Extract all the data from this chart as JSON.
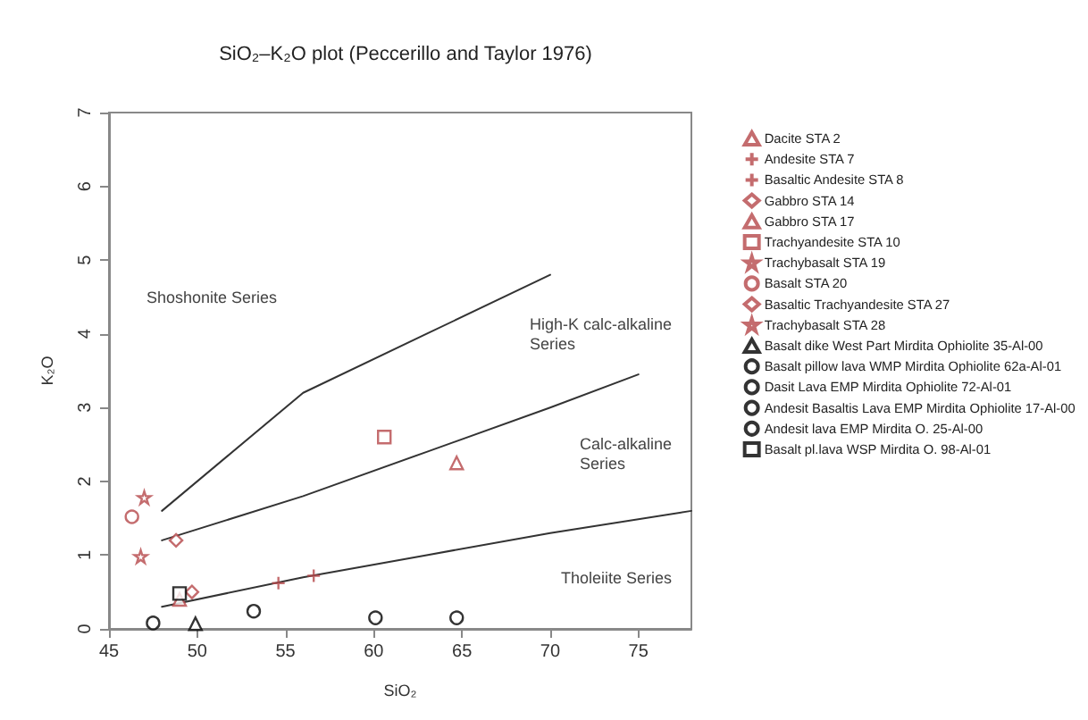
{
  "chart_data": {
    "type": "scatter",
    "title": "SiO₂–K₂O plot (Peccerillo and Taylor 1976)",
    "xlabel": "SiO₂",
    "ylabel": "K₂O",
    "xlim": [
      45,
      78
    ],
    "xticks": [
      45,
      50,
      55,
      60,
      65,
      70,
      75
    ],
    "ylim": [
      0,
      7
    ],
    "yticks": [
      0,
      1,
      2,
      3,
      4,
      5,
      6,
      7
    ],
    "grid": false,
    "legend": "right",
    "annotations": [
      "Shoshonite Series",
      "High-K calc-alkaline\nSeries",
      "Calc-alkaline\nSeries",
      "Tholeiite Series"
    ],
    "series": [
      {
        "type": "line",
        "color": "#333333",
        "marker": "none",
        "x": [
          48,
          56,
          63,
          70,
          78
        ],
        "values": [
          0.3,
          0.7,
          1.0,
          1.3,
          1.6
        ]
      },
      {
        "type": "line",
        "color": "#333333",
        "marker": "none",
        "x": [
          48,
          56,
          63,
          70,
          75
        ],
        "values": [
          1.2,
          1.8,
          2.4,
          3.0,
          3.45
        ]
      },
      {
        "type": "line",
        "color": "#333333",
        "marker": "none",
        "x": [
          48,
          56,
          63,
          70
        ],
        "values": [
          1.6,
          3.2,
          4.0,
          4.8
        ]
      },
      {
        "name": "Dacite STA 2",
        "color": "#b5474a",
        "marker": "triangle",
        "x": [
          64.7
        ],
        "values": [
          2.25
        ]
      },
      {
        "name": "Andesite STA 7",
        "color": "#b5474a",
        "marker": "cross",
        "x": [
          56.6
        ],
        "values": [
          0.72
        ]
      },
      {
        "name": "Basaltic Andesite STA 8",
        "color": "#b5474a",
        "marker": "cross",
        "x": [
          54.6
        ],
        "values": [
          0.62
        ]
      },
      {
        "name": "Gabbro STA 14",
        "color": "#b5474a",
        "marker": "diamond",
        "x": [
          49.7
        ],
        "values": [
          0.5
        ]
      },
      {
        "name": "Gabbro STA 17",
        "color": "#b5474a",
        "marker": "triangle",
        "x": [
          49.0
        ],
        "values": [
          0.4
        ]
      },
      {
        "name": "Trachyandesite STA 10",
        "color": "#b5474a",
        "marker": "square",
        "x": [
          60.6
        ],
        "values": [
          2.6
        ]
      },
      {
        "name": "Trachybasalt STA 19",
        "color": "#b5474a",
        "marker": "star",
        "x": [
          46.8
        ],
        "values": [
          0.98
        ]
      },
      {
        "name": "Basalt STA 20",
        "color": "#b5474a",
        "marker": "circle",
        "x": [
          46.3
        ],
        "values": [
          1.52
        ]
      },
      {
        "name": "Basaltic Trachyandesite STA 27",
        "color": "#b5474a",
        "marker": "diamond",
        "x": [
          48.8
        ],
        "values": [
          1.2
        ]
      },
      {
        "name": "Trachybasalt STA 28",
        "color": "#b5474a",
        "marker": "star",
        "x": [
          47.0
        ],
        "values": [
          1.78
        ]
      },
      {
        "name": "Basalt dike West Part Mirdita Ophiolite 35-Al-00",
        "color": "#000000",
        "marker": "triangle",
        "x": [
          49.9
        ],
        "values": [
          0.07
        ]
      },
      {
        "name": "Basalt pillow lava WMP Mirdita Ophiolite 62a-Al-01",
        "color": "#000000",
        "marker": "circle",
        "x": [
          47.5
        ],
        "values": [
          0.08
        ]
      },
      {
        "name": "Dasit Lava EMP Mirdita Ophiolite 72-Al-01",
        "color": "#000000",
        "marker": "circle",
        "x": [
          64.7
        ],
        "values": [
          0.15
        ]
      },
      {
        "name": "Andesit Basaltis Lava EMP Mirdita Ophiolite 17-Al-00",
        "color": "#000000",
        "marker": "circle",
        "x": [
          53.2
        ],
        "values": [
          0.24
        ]
      },
      {
        "name": "Andesit lava EMP Mirdita O. 25-Al-00",
        "color": "#000000",
        "marker": "circle",
        "x": [
          60.1
        ],
        "values": [
          0.15
        ]
      },
      {
        "name": "Basalt pl.lava WSP Mirdita O. 98-Al-01",
        "color": "#000000",
        "marker": "square",
        "x": [
          49.0
        ],
        "values": [
          0.48
        ]
      }
    ]
  }
}
